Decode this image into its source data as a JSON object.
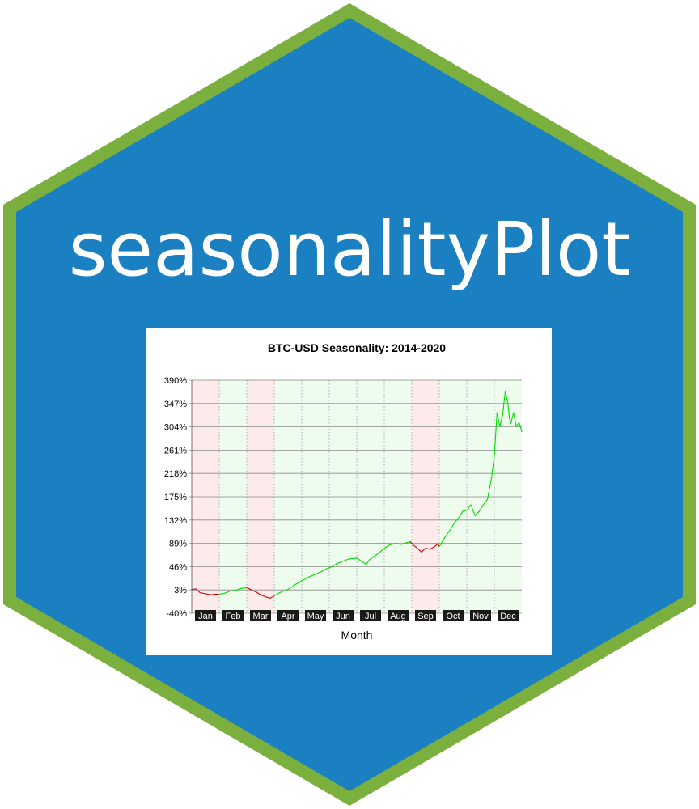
{
  "logo": {
    "title": "seasonalityPlot",
    "border_color": "#7cb03e",
    "fill_color": "#1a80c1",
    "text_color": "#ffffff"
  },
  "chart_data": {
    "type": "line",
    "title": "BTC-USD Seasonality: 2014-2020",
    "xlabel": "Month",
    "ylabel": "",
    "categories": [
      "Jan",
      "Feb",
      "Mar",
      "Apr",
      "May",
      "Jun",
      "Jul",
      "Aug",
      "Sep",
      "Oct",
      "Nov",
      "Dec"
    ],
    "month_sign": [
      "negative",
      "positive",
      "negative",
      "positive",
      "positive",
      "positive",
      "positive",
      "positive",
      "negative",
      "positive",
      "positive",
      "positive"
    ],
    "y_ticks": [
      "-40%",
      "3%",
      "46%",
      "89%",
      "132%",
      "175%",
      "218%",
      "261%",
      "304%",
      "347%",
      "390%"
    ],
    "ylim": [
      -40,
      390
    ],
    "grid": true,
    "colors": {
      "positive_line": "#00dd00",
      "negative_line": "#dd0000",
      "positive_band": "#eefcee",
      "negative_band": "#fdebeb",
      "month_label_bg": "#1a1a1a",
      "month_label_text": "#ffffff"
    },
    "series": [
      {
        "x": [
          0.0,
          0.15,
          0.3,
          0.5,
          0.7,
          0.85,
          1.0,
          1.2,
          1.4,
          1.6,
          1.8,
          2.0,
          2.1,
          2.2,
          2.35,
          2.5,
          2.7,
          2.85,
          3.0,
          3.2,
          3.5,
          3.8,
          4.0,
          4.3,
          4.6,
          4.9,
          5.1,
          5.3,
          5.5,
          5.7,
          5.9,
          6.0,
          6.2,
          6.35,
          6.45,
          6.6,
          6.8,
          7.0,
          7.2,
          7.4,
          7.6,
          7.8,
          7.95,
          8.05,
          8.2,
          8.35,
          8.5,
          8.65,
          8.8,
          8.95,
          9.0,
          9.2,
          9.4,
          9.55,
          9.7,
          9.85,
          10.0,
          10.15,
          10.3,
          10.45,
          10.6,
          10.75,
          10.9,
          11.0,
          11.05,
          11.1,
          11.2,
          11.3,
          11.4,
          11.5,
          11.55,
          11.6,
          11.7,
          11.8,
          11.9,
          12.0
        ],
        "y": [
          4,
          5,
          -2,
          -4,
          -6,
          -5,
          -5,
          -3,
          1,
          2,
          6,
          7,
          5,
          2,
          -1,
          -6,
          -10,
          -12,
          -8,
          -2,
          4,
          14,
          20,
          28,
          34,
          42,
          46,
          52,
          56,
          60,
          61,
          62,
          55,
          50,
          58,
          64,
          71,
          80,
          86,
          89,
          87,
          90,
          92,
          86,
          80,
          73,
          80,
          78,
          82,
          88,
          83,
          100,
          114,
          127,
          136,
          148,
          150,
          160,
          140,
          148,
          160,
          170,
          210,
          250,
          290,
          330,
          305,
          325,
          370,
          345,
          320,
          310,
          330,
          305,
          312,
          295
        ],
        "segments_sign": "follows month_sign"
      }
    ]
  }
}
